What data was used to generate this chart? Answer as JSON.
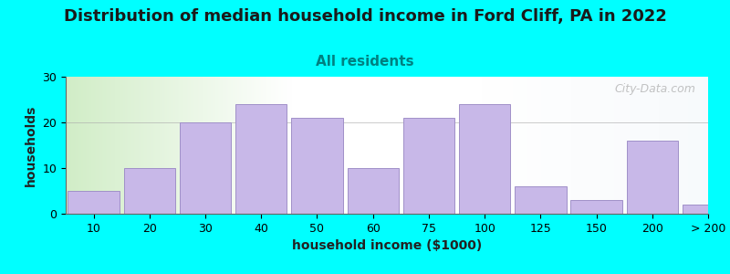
{
  "title": "Distribution of median household income in Ford Cliff, PA in 2022",
  "subtitle": "All residents",
  "xlabel": "household income ($1000)",
  "ylabel": "households",
  "background_color": "#00FFFF",
  "bar_color": "#C8B8E8",
  "bar_edge_color": "#A090C8",
  "categories": [
    "10",
    "20",
    "30",
    "40",
    "50",
    "60",
    "75",
    "100",
    "125",
    "150",
    "200",
    "> 200"
  ],
  "values": [
    5,
    10,
    20,
    24,
    21,
    10,
    21,
    24,
    6,
    3,
    16,
    2
  ],
  "ylim": [
    0,
    30
  ],
  "yticks": [
    0,
    10,
    20,
    30
  ],
  "bar_lefts": [
    0,
    1,
    2,
    3,
    4,
    5,
    6,
    7,
    8,
    9,
    10,
    11
  ],
  "title_fontsize": 13,
  "subtitle_fontsize": 11,
  "label_fontsize": 10,
  "tick_fontsize": 9,
  "watermark": "City-Data.com"
}
